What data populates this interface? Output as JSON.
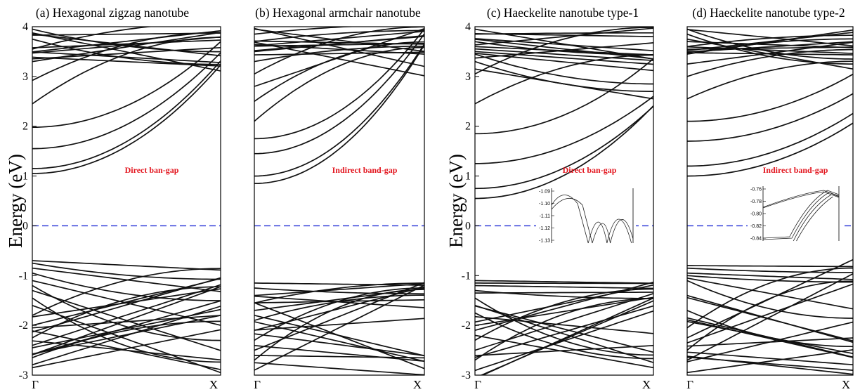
{
  "y_axis_label": "Energy (eV)",
  "chart_data": [
    {
      "type": "line",
      "title": "(a) Hexagonal zigzag nanotube",
      "annotation": "Direct ban-gap",
      "annotation_color": "#e3161f",
      "ylabel": "Energy (eV)",
      "ylim": [
        -3,
        4
      ],
      "yticks": [
        4,
        3,
        2,
        1,
        0,
        -1,
        -2,
        -3
      ],
      "xticks": [
        "Γ",
        "X"
      ],
      "fermi_level": 0,
      "fermi_color": "#1f2bd6",
      "conduction_band_minima": [
        1.05,
        1.15,
        1.55,
        1.98,
        2.45,
        2.92,
        3.3,
        3.55,
        3.75,
        3.85,
        3.95
      ],
      "conduction_band_at_X": [
        3.2,
        3.35,
        3.45,
        3.6,
        3.75,
        3.85,
        3.95,
        4.0
      ],
      "valence_band_maxima": [
        -0.7,
        -0.75,
        -0.85,
        -0.95,
        -1.1,
        -1.2,
        -1.3,
        -1.45,
        -1.6,
        -1.8,
        -2.0,
        -2.25,
        -2.45,
        -2.65,
        -2.85
      ],
      "valence_band_at_X": [
        -1.0,
        -1.05,
        -1.3,
        -1.6,
        -1.9,
        -2.2,
        -2.45,
        -2.7,
        -2.95
      ]
    },
    {
      "type": "line",
      "title": "(b) Hexagonal armchair nanotube",
      "annotation": "Indirect band-gap",
      "annotation_color": "#e3161f",
      "ylim": [
        -3,
        4
      ],
      "xticks": [
        "Γ",
        "X"
      ],
      "fermi_level": 0,
      "conduction_band_minima": [
        0.85,
        1.0,
        1.45,
        1.75,
        2.1,
        2.5,
        2.8,
        3.05,
        3.3,
        3.5,
        3.7,
        3.85,
        3.95
      ],
      "conduction_band_at_X": [
        3.6,
        3.75,
        3.9,
        4.0
      ],
      "valence_band_maxima": [
        -1.15,
        -1.25,
        -1.4,
        -1.55,
        -1.7,
        -1.9,
        -2.1,
        -2.3,
        -2.5,
        -2.7,
        -2.9
      ],
      "valence_band_at_X": [
        -1.25,
        -1.3
      ]
    },
    {
      "type": "line",
      "title": "(c) Haeckelite nanotube type-1",
      "annotation": "Direct ban-gap",
      "annotation_color": "#e3161f",
      "ylim": [
        -3,
        4
      ],
      "yticks": [
        4,
        3,
        2,
        1,
        0,
        -1,
        -2,
        -3
      ],
      "xticks": [
        "Γ",
        "X"
      ],
      "fermi_level": 0,
      "conduction_band_minima": [
        0.55,
        0.75,
        1.25,
        1.85,
        2.45,
        3.05,
        3.15,
        3.3,
        3.45,
        3.6,
        3.7,
        3.85,
        3.95
      ],
      "conduction_band_at_X": [
        2.45,
        2.5,
        2.65,
        3.35,
        3.4,
        3.95
      ],
      "valence_band_maxima": [
        -1.1,
        -1.15,
        -1.2,
        -1.3,
        -1.35,
        -1.45,
        -1.6,
        -1.75,
        -2.1,
        -2.3,
        -2.5,
        -2.7
      ],
      "valence_band_at_X": [
        -1.1,
        -1.15,
        -1.25,
        -1.35,
        -1.45,
        -2.55,
        -2.6,
        -2.7
      ],
      "inset": {
        "yticks": [
          "-1.09",
          "-1.10",
          "-1.11",
          "-1.12",
          "-1.13"
        ],
        "ylim": [
          -1.13,
          -1.09
        ]
      }
    },
    {
      "type": "line",
      "title": "(d) Haeckelite nanotube type-2",
      "annotation": "Indirect band-gap",
      "annotation_color": "#e3161f",
      "ylim": [
        -3,
        4
      ],
      "xticks": [
        "Γ",
        "X"
      ],
      "fermi_level": 0,
      "conduction_band_minima": [
        1.0,
        1.2,
        1.7,
        2.1,
        2.55,
        3.0,
        3.25,
        3.45,
        3.6,
        3.75,
        3.85,
        3.95
      ],
      "conduction_band_at_X": [
        2.0,
        2.3,
        2.65,
        3.0,
        3.3,
        3.5,
        3.65,
        3.8,
        3.9
      ],
      "valence_band_maxima": [
        -0.8,
        -0.85,
        -0.95,
        -1.0,
        -1.05,
        -1.1,
        -1.4,
        -1.7,
        -1.85,
        -2.05,
        -2.25,
        -2.5,
        -2.7
      ],
      "valence_band_at_X": [
        -0.75,
        -0.8,
        -1.05,
        -1.1,
        -1.8,
        -2.0,
        -2.2,
        -2.4,
        -2.6
      ],
      "inset": {
        "yticks": [
          "-0.76",
          "-0.78",
          "-0.80",
          "-0.82",
          "-0.84"
        ],
        "ylim": [
          -0.85,
          -0.755
        ]
      }
    }
  ]
}
